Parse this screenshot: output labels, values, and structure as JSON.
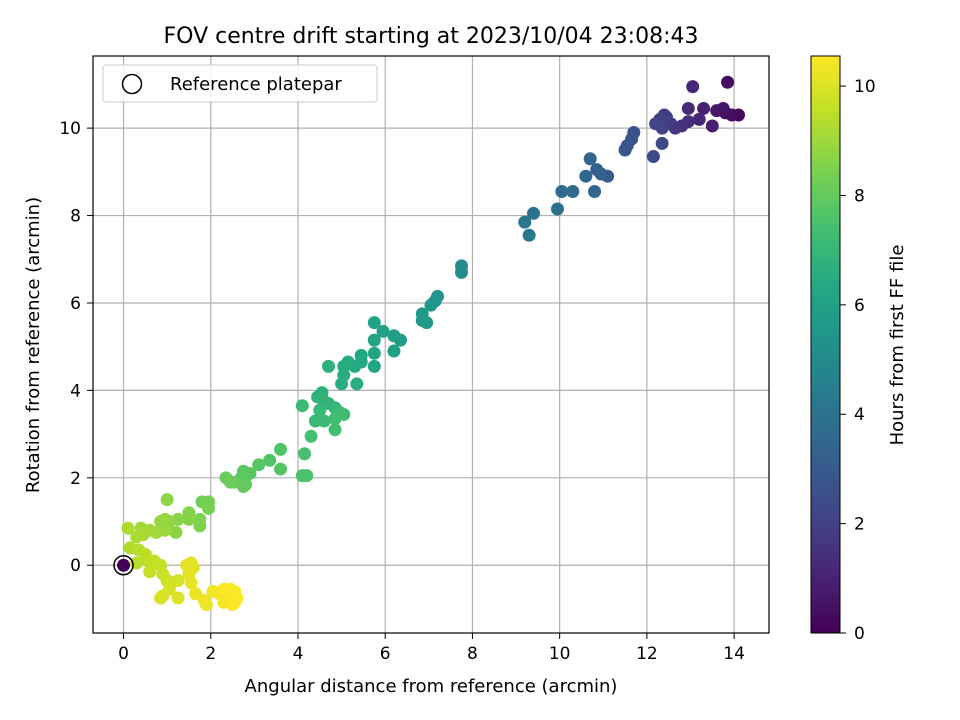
{
  "chart_data": {
    "type": "scatter",
    "title": "FOV centre drift starting at 2023/10/04 23:08:43",
    "xlabel": "Angular distance from reference (arcmin)",
    "ylabel": "Rotation from reference (arcmin)",
    "xlim": [
      -0.7,
      14.8
    ],
    "ylim": [
      -1.55,
      11.65
    ],
    "xticks": [
      0,
      2,
      4,
      6,
      8,
      10,
      12,
      14
    ],
    "yticks": [
      0,
      2,
      4,
      6,
      8,
      10
    ],
    "grid": true,
    "legend": {
      "position": "top-left",
      "entries": [
        "Reference platepar"
      ]
    },
    "reference_point": {
      "x": 0,
      "y": 0,
      "label": "Reference platepar"
    },
    "colorbar": {
      "label": "Hours from first FF file",
      "range": [
        0,
        10.55
      ],
      "ticks": [
        0,
        2,
        4,
        6,
        8,
        10
      ],
      "colormap": "viridis"
    },
    "series": [
      {
        "points": [
          [
            13.85,
            11.05,
            0.35
          ],
          [
            14.1,
            10.3,
            0.2
          ],
          [
            13.95,
            10.3,
            0.3
          ],
          [
            13.8,
            10.35,
            0.5
          ],
          [
            13.6,
            10.4,
            0.7
          ],
          [
            13.75,
            10.45,
            0.6
          ],
          [
            13.5,
            10.05,
            0.9
          ],
          [
            13.3,
            10.45,
            1.0
          ],
          [
            13.2,
            10.2,
            1.1
          ],
          [
            13.05,
            10.95,
            1.15
          ],
          [
            12.95,
            10.45,
            1.3
          ],
          [
            12.95,
            10.15,
            1.4
          ],
          [
            12.8,
            10.05,
            1.5
          ],
          [
            12.65,
            10.0,
            1.6
          ],
          [
            12.55,
            10.1,
            1.7
          ],
          [
            12.4,
            10.3,
            1.8
          ],
          [
            12.45,
            10.25,
            1.9
          ],
          [
            12.3,
            10.2,
            2.0
          ],
          [
            12.35,
            10.0,
            2.1
          ],
          [
            12.2,
            10.1,
            2.2
          ],
          [
            12.35,
            9.65,
            2.3
          ],
          [
            12.15,
            9.35,
            2.4
          ],
          [
            11.7,
            9.9,
            2.6
          ],
          [
            11.65,
            9.75,
            2.7
          ],
          [
            11.55,
            9.6,
            2.8
          ],
          [
            11.5,
            9.5,
            2.9
          ],
          [
            11.1,
            8.9,
            3.1
          ],
          [
            10.95,
            8.95,
            3.2
          ],
          [
            10.85,
            9.05,
            3.3
          ],
          [
            10.7,
            9.3,
            3.4
          ],
          [
            10.6,
            8.9,
            3.5
          ],
          [
            10.8,
            8.55,
            3.55
          ],
          [
            10.3,
            8.55,
            3.65
          ],
          [
            10.05,
            8.55,
            3.75
          ],
          [
            9.95,
            8.15,
            3.85
          ],
          [
            9.4,
            8.05,
            4.0
          ],
          [
            9.2,
            7.85,
            4.1
          ],
          [
            9.3,
            7.55,
            4.2
          ],
          [
            7.75,
            6.85,
            5.0
          ],
          [
            7.75,
            6.7,
            5.1
          ],
          [
            7.2,
            6.15,
            5.3
          ],
          [
            7.15,
            6.05,
            5.4
          ],
          [
            7.05,
            5.95,
            5.5
          ],
          [
            6.85,
            5.75,
            5.6
          ],
          [
            6.95,
            5.55,
            5.7
          ],
          [
            6.85,
            5.6,
            5.75
          ],
          [
            6.35,
            5.15,
            5.8
          ],
          [
            6.2,
            5.25,
            5.85
          ],
          [
            6.2,
            4.9,
            5.9
          ],
          [
            5.95,
            5.35,
            6.0
          ],
          [
            5.75,
            5.55,
            6.05
          ],
          [
            5.75,
            5.15,
            6.1
          ],
          [
            5.75,
            4.85,
            6.15
          ],
          [
            5.75,
            4.55,
            6.2
          ],
          [
            5.45,
            4.8,
            6.3
          ],
          [
            5.45,
            4.65,
            6.35
          ],
          [
            5.3,
            4.55,
            6.4
          ],
          [
            5.15,
            4.65,
            6.45
          ],
          [
            5.05,
            4.55,
            6.5
          ],
          [
            5.05,
            4.35,
            6.55
          ],
          [
            5.0,
            4.15,
            6.6
          ],
          [
            5.35,
            4.15,
            6.65
          ],
          [
            4.7,
            4.55,
            6.7
          ],
          [
            4.55,
            3.95,
            6.75
          ],
          [
            4.45,
            3.85,
            6.8
          ],
          [
            4.6,
            3.75,
            6.85
          ],
          [
            4.7,
            3.7,
            6.9
          ],
          [
            4.85,
            3.6,
            6.95
          ],
          [
            4.5,
            3.55,
            7.0
          ],
          [
            4.4,
            3.3,
            7.05
          ],
          [
            4.6,
            3.3,
            7.1
          ],
          [
            4.1,
            3.65,
            7.15
          ],
          [
            4.95,
            3.5,
            7.2
          ],
          [
            5.05,
            3.45,
            7.25
          ],
          [
            4.85,
            3.35,
            7.3
          ],
          [
            4.85,
            3.1,
            7.35
          ],
          [
            4.3,
            2.95,
            7.4
          ],
          [
            4.15,
            2.55,
            7.45
          ],
          [
            4.1,
            2.05,
            7.5
          ],
          [
            4.2,
            2.05,
            7.55
          ],
          [
            3.6,
            2.65,
            7.6
          ],
          [
            3.35,
            2.4,
            7.65
          ],
          [
            3.6,
            2.2,
            7.7
          ],
          [
            3.1,
            2.3,
            7.75
          ],
          [
            2.9,
            2.1,
            7.8
          ],
          [
            2.75,
            2.15,
            7.85
          ],
          [
            2.7,
            2.0,
            7.9
          ],
          [
            2.8,
            1.85,
            7.95
          ],
          [
            2.75,
            1.8,
            8.0
          ],
          [
            2.55,
            1.9,
            8.05
          ],
          [
            2.35,
            2.0,
            8.1
          ],
          [
            2.45,
            1.9,
            8.15
          ],
          [
            1.8,
            1.45,
            8.3
          ],
          [
            1.95,
            1.45,
            8.35
          ],
          [
            1.95,
            1.3,
            8.4
          ],
          [
            1.75,
            1.05,
            8.45
          ],
          [
            1.75,
            0.9,
            8.5
          ],
          [
            1.5,
            1.2,
            8.55
          ],
          [
            1.5,
            1.05,
            8.6
          ],
          [
            1.25,
            1.05,
            8.65
          ],
          [
            1.2,
            0.75,
            8.7
          ],
          [
            1.0,
            1.5,
            8.75
          ],
          [
            1.05,
            1.0,
            8.8
          ],
          [
            0.95,
            1.05,
            8.85
          ],
          [
            0.85,
            1.0,
            8.9
          ],
          [
            0.95,
            0.8,
            8.95
          ],
          [
            0.75,
            0.75,
            9.0
          ],
          [
            0.6,
            0.8,
            9.05
          ],
          [
            0.4,
            0.85,
            9.1
          ],
          [
            0.45,
            0.7,
            9.15
          ],
          [
            0.3,
            0.65,
            9.2
          ],
          [
            0.1,
            0.85,
            9.25
          ],
          [
            0.15,
            0.4,
            9.3
          ],
          [
            0.35,
            0.35,
            9.35
          ],
          [
            0.3,
            0.05,
            9.4
          ],
          [
            0.5,
            0.25,
            9.45
          ],
          [
            0.55,
            0.1,
            9.5
          ],
          [
            0.7,
            0.1,
            9.55
          ],
          [
            0.85,
            0.0,
            9.6
          ],
          [
            0.6,
            -0.15,
            9.65
          ],
          [
            0.9,
            -0.2,
            9.7
          ],
          [
            1.0,
            -0.35,
            9.75
          ],
          [
            1.1,
            -0.4,
            9.8
          ],
          [
            1.25,
            -0.35,
            9.85
          ],
          [
            1.05,
            -0.55,
            9.9
          ],
          [
            0.9,
            -0.7,
            9.95
          ],
          [
            0.85,
            -0.75,
            9.95
          ],
          [
            1.25,
            -0.75,
            10.0
          ],
          [
            1.45,
            0.0,
            10.05
          ],
          [
            1.55,
            0.05,
            10.1
          ],
          [
            1.6,
            -0.05,
            10.1
          ],
          [
            1.5,
            -0.2,
            10.15
          ],
          [
            1.55,
            -0.4,
            10.2
          ],
          [
            1.65,
            -0.65,
            10.25
          ],
          [
            1.85,
            -0.8,
            10.3
          ],
          [
            1.9,
            -0.9,
            10.3
          ],
          [
            2.05,
            -0.6,
            10.35
          ],
          [
            2.2,
            -0.65,
            10.35
          ],
          [
            2.3,
            -0.85,
            10.4
          ],
          [
            2.4,
            -0.75,
            10.4
          ],
          [
            2.45,
            -0.55,
            10.45
          ],
          [
            2.5,
            -0.7,
            10.45
          ],
          [
            2.55,
            -0.6,
            10.5
          ],
          [
            2.6,
            -0.75,
            10.5
          ],
          [
            2.5,
            -0.9,
            10.55
          ],
          [
            2.55,
            -0.85,
            10.55
          ],
          [
            2.3,
            -0.55,
            10.5
          ],
          [
            0.0,
            0.0,
            0.0
          ]
        ]
      }
    ]
  }
}
